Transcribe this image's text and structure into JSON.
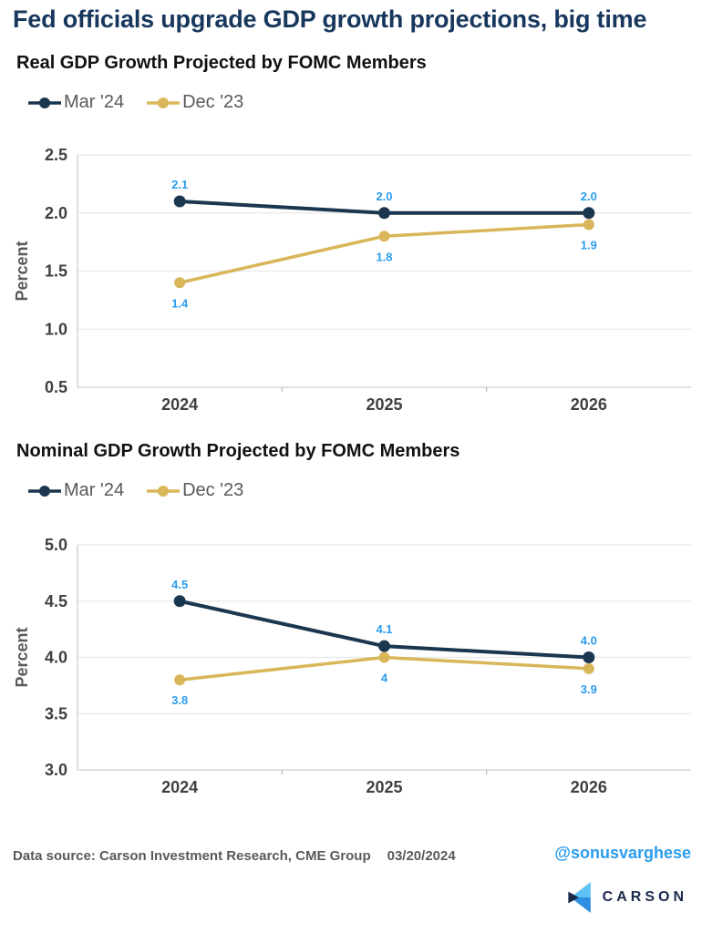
{
  "page": {
    "title": "Fed officials upgrade GDP growth projections, big time"
  },
  "colors": {
    "title_navy": "#17375d",
    "mar_series": "#1b374f",
    "dec_series": "#d9b659",
    "point_label_blue": "#2b9ced",
    "axis_tick": "#404040",
    "axis_title": "#595959",
    "legend_text": "#595959",
    "gridline": "#e8e8e8",
    "axis_line": "#cfcfcf",
    "minor_tick": "#bfbfbf",
    "source_text": "#595959",
    "handle_blue": "#2b9ced",
    "logo_navy": "#1b2a4a",
    "logo_light_blue": "#5ec3f4",
    "logo_blue": "#2e8fe0"
  },
  "chart_data": [
    {
      "type": "line",
      "title": "Real GDP Growth Projected by FOMC Members",
      "ylabel": "Percent",
      "xlabel": "",
      "categories": [
        "2024",
        "2025",
        "2026"
      ],
      "ylim": [
        0.5,
        2.5
      ],
      "ytick_step": 0.5,
      "grid": true,
      "legend_position": "top-left",
      "series": [
        {
          "name": "Mar '24",
          "color": "#1b374f",
          "values": [
            2.1,
            2.0,
            2.0
          ],
          "point_labels": [
            "2.1",
            "2.0",
            "2.0"
          ],
          "label_side": "above"
        },
        {
          "name": "Dec '23",
          "color": "#d9b659",
          "values": [
            1.4,
            1.8,
            1.9
          ],
          "point_labels": [
            "1.4",
            "1.8",
            "1.9"
          ],
          "label_side": "below"
        }
      ]
    },
    {
      "type": "line",
      "title": "Nominal GDP Growth Projected by FOMC Members",
      "ylabel": "Percent",
      "xlabel": "",
      "categories": [
        "2024",
        "2025",
        "2026"
      ],
      "ylim": [
        3.0,
        5.0
      ],
      "ytick_step": 0.5,
      "grid": true,
      "legend_position": "top-left",
      "series": [
        {
          "name": "Mar '24",
          "color": "#1b374f",
          "values": [
            4.5,
            4.1,
            4.0
          ],
          "point_labels": [
            "4.5",
            "4.1",
            "4.0"
          ],
          "label_side": "above"
        },
        {
          "name": "Dec '23",
          "color": "#d9b659",
          "values": [
            3.8,
            4.0,
            3.9
          ],
          "point_labels": [
            "3.8",
            "4",
            "3.9"
          ],
          "label_side": "below"
        }
      ]
    }
  ],
  "footer": {
    "source": "Data source: Carson Investment Research, CME Group",
    "date": "03/20/2024",
    "handle": "@sonusvarghese",
    "logo_text": "CARSON"
  }
}
